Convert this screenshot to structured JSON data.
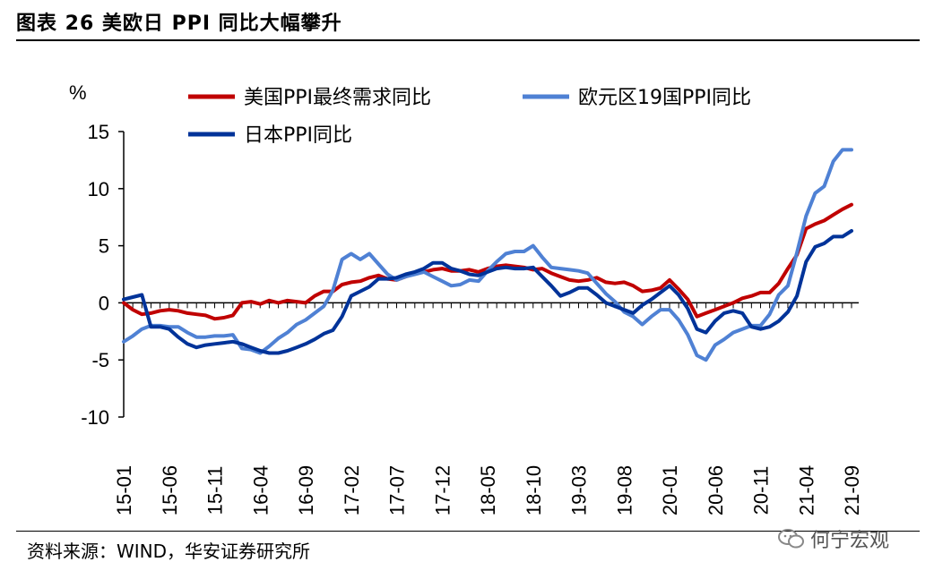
{
  "figure": {
    "title": "图表 26 美欧日 PPI 同比大幅攀升",
    "source": "资料来源：WIND，华安证券研究所",
    "watermark": "何宁宏观"
  },
  "chart_data": {
    "type": "line",
    "ylabel": "%",
    "ylim": [
      -10,
      15
    ],
    "yticks": [
      -10,
      -5,
      0,
      5,
      10,
      15
    ],
    "x_tick_labels": [
      "15-01",
      "15-06",
      "15-11",
      "16-04",
      "16-09",
      "17-02",
      "17-07",
      "17-12",
      "18-05",
      "18-10",
      "19-03",
      "19-08",
      "20-01",
      "20-06",
      "20-11",
      "21-04",
      "21-09"
    ],
    "x_start": "2015-01",
    "x_end": "2021-09",
    "n_points": 81,
    "series": [
      {
        "name": "美国PPI最终需求同比",
        "color": "#c00000",
        "values": [
          0.0,
          -0.6,
          -1.0,
          -0.9,
          -0.7,
          -0.6,
          -0.7,
          -0.9,
          -1.0,
          -1.1,
          -1.4,
          -1.3,
          -1.1,
          0.0,
          0.1,
          -0.1,
          0.2,
          0.0,
          0.2,
          0.1,
          0.0,
          0.6,
          1.0,
          1.0,
          1.6,
          1.8,
          1.9,
          2.2,
          2.4,
          2.1,
          2.0,
          2.3,
          2.6,
          2.7,
          2.9,
          3.0,
          2.8,
          2.8,
          2.9,
          2.7,
          3.0,
          3.2,
          3.3,
          3.2,
          3.1,
          2.9,
          3.0,
          2.6,
          2.3,
          2.0,
          1.9,
          2.0,
          2.2,
          1.8,
          1.7,
          1.8,
          1.5,
          1.0,
          1.1,
          1.3,
          2.0,
          1.2,
          0.3,
          -1.2,
          -0.9,
          -0.6,
          -0.3,
          0.0,
          0.4,
          0.6,
          0.9,
          0.9,
          1.7,
          3.0,
          4.2,
          6.5,
          6.9,
          7.2,
          7.7,
          8.2,
          8.6
        ]
      },
      {
        "name": "欧元区19国PPI同比",
        "color": "#4f81d4",
        "values": [
          -3.4,
          -2.9,
          -2.3,
          -2.0,
          -2.0,
          -2.1,
          -2.1,
          -2.6,
          -3.0,
          -3.0,
          -2.9,
          -2.9,
          -2.8,
          -4.0,
          -4.1,
          -4.4,
          -3.8,
          -3.1,
          -2.6,
          -1.9,
          -1.5,
          -0.9,
          -0.3,
          1.1,
          3.8,
          4.3,
          3.8,
          4.3,
          3.4,
          2.5,
          2.0,
          2.3,
          2.5,
          2.7,
          2.3,
          1.9,
          1.5,
          1.6,
          2.0,
          1.9,
          2.8,
          3.6,
          4.3,
          4.5,
          4.5,
          5.0,
          4.0,
          3.1,
          3.0,
          2.9,
          2.8,
          2.6,
          1.7,
          0.8,
          0.1,
          -0.8,
          -1.2,
          -1.9,
          -1.2,
          -0.6,
          -0.6,
          -1.5,
          -2.8,
          -4.6,
          -5.0,
          -3.7,
          -3.2,
          -2.6,
          -2.3,
          -2.0,
          -2.0,
          -1.0,
          0.7,
          1.5,
          4.4,
          7.6,
          9.6,
          10.2,
          12.4,
          13.4,
          13.4
        ]
      },
      {
        "name": "日本PPI同比",
        "color": "#003399",
        "values": [
          0.3,
          0.5,
          0.7,
          -2.1,
          -2.1,
          -2.3,
          -3.0,
          -3.6,
          -3.9,
          -3.7,
          -3.6,
          -3.5,
          -3.4,
          -3.6,
          -3.9,
          -4.2,
          -4.4,
          -4.4,
          -4.2,
          -3.9,
          -3.6,
          -3.2,
          -2.7,
          -2.4,
          -1.2,
          0.6,
          1.0,
          1.4,
          2.1,
          2.1,
          2.2,
          2.5,
          2.7,
          3.0,
          3.5,
          3.5,
          3.0,
          2.8,
          2.5,
          2.4,
          2.7,
          3.0,
          3.1,
          3.0,
          3.0,
          3.1,
          2.3,
          1.5,
          0.6,
          0.9,
          1.3,
          1.3,
          0.7,
          0.0,
          -0.3,
          -0.6,
          -0.9,
          -0.2,
          0.3,
          0.9,
          1.5,
          0.7,
          -0.5,
          -2.3,
          -2.6,
          -1.6,
          -0.9,
          -0.7,
          -0.9,
          -2.1,
          -2.3,
          -2.1,
          -1.6,
          -0.8,
          0.6,
          3.6,
          4.9,
          5.2,
          5.8,
          5.8,
          6.3
        ]
      }
    ],
    "legend": {
      "placement": "top",
      "entries": [
        "美国PPI最终需求同比",
        "欧元区19国PPI同比",
        "日本PPI同比"
      ]
    }
  }
}
